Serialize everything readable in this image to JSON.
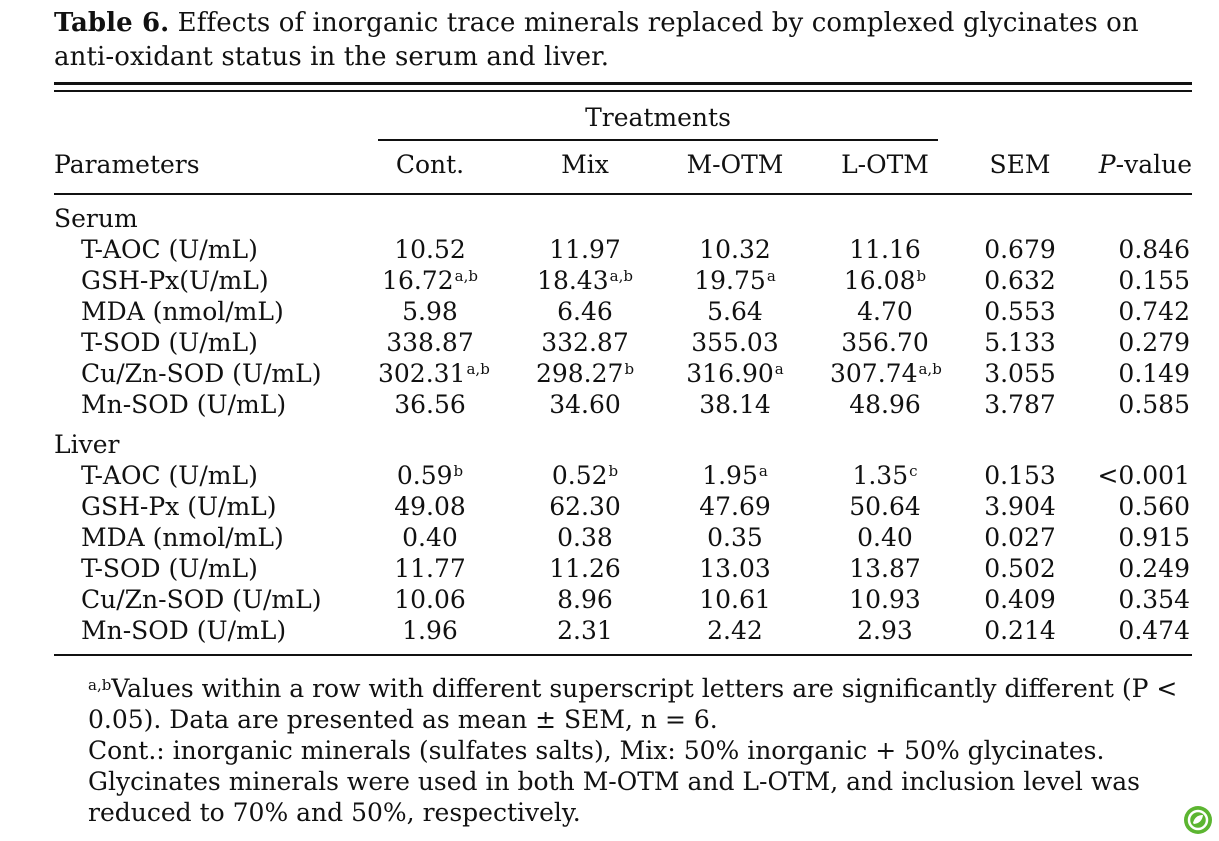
{
  "caption": {
    "label": "Table 6.",
    "text": " Effects of inorganic trace minerals replaced by complexed glycinates on anti-oxidant status in the serum and liver."
  },
  "header": {
    "treatments": "Treatments",
    "parameters": "Parameters",
    "columns": [
      "Cont.",
      "Mix",
      "M-OTM",
      "L-OTM"
    ],
    "sem": "SEM",
    "pvalue_italic": "P",
    "pvalue_rest": "-value"
  },
  "sections": [
    {
      "name": "Serum",
      "rows": [
        {
          "param": "T-AOC (U/mL)",
          "cells": [
            [
              "10.52",
              ""
            ],
            [
              "11.97",
              ""
            ],
            [
              "10.32",
              ""
            ],
            [
              "11.16",
              ""
            ]
          ],
          "sem": "0.679",
          "p": "0.846"
        },
        {
          "param": "GSH-Px(U/mL)",
          "cells": [
            [
              "16.72",
              "a,b"
            ],
            [
              "18.43",
              "a,b"
            ],
            [
              "19.75",
              "a"
            ],
            [
              "16.08",
              "b"
            ]
          ],
          "sem": "0.632",
          "p": "0.155"
        },
        {
          "param": "MDA (nmol/mL)",
          "cells": [
            [
              "5.98",
              ""
            ],
            [
              "6.46",
              ""
            ],
            [
              "5.64",
              ""
            ],
            [
              "4.70",
              ""
            ]
          ],
          "sem": "0.553",
          "p": "0.742"
        },
        {
          "param": "T-SOD (U/mL)",
          "cells": [
            [
              "338.87",
              ""
            ],
            [
              "332.87",
              ""
            ],
            [
              "355.03",
              ""
            ],
            [
              "356.70",
              ""
            ]
          ],
          "sem": "5.133",
          "p": "0.279"
        },
        {
          "param": "Cu/Zn-SOD (U/mL)",
          "cells": [
            [
              "302.31",
              "a,b"
            ],
            [
              "298.27",
              "b"
            ],
            [
              "316.90",
              "a"
            ],
            [
              "307.74",
              "a,b"
            ]
          ],
          "sem": "3.055",
          "p": "0.149"
        },
        {
          "param": "Mn-SOD (U/mL)",
          "cells": [
            [
              "36.56",
              ""
            ],
            [
              "34.60",
              ""
            ],
            [
              "38.14",
              ""
            ],
            [
              "48.96",
              ""
            ]
          ],
          "sem": "3.787",
          "p": "0.585"
        }
      ]
    },
    {
      "name": "Liver",
      "rows": [
        {
          "param": "T-AOC (U/mL)",
          "cells": [
            [
              "0.59",
              "b"
            ],
            [
              "0.52",
              "b"
            ],
            [
              "1.95",
              "a"
            ],
            [
              "1.35",
              "c"
            ]
          ],
          "sem": "0.153",
          "p": "<0.001"
        },
        {
          "param": "GSH-Px (U/mL)",
          "cells": [
            [
              "49.08",
              ""
            ],
            [
              "62.30",
              ""
            ],
            [
              "47.69",
              ""
            ],
            [
              "50.64",
              ""
            ]
          ],
          "sem": "3.904",
          "p": "0.560"
        },
        {
          "param": "MDA (nmol/mL)",
          "cells": [
            [
              "0.40",
              ""
            ],
            [
              "0.38",
              ""
            ],
            [
              "0.35",
              ""
            ],
            [
              "0.40",
              ""
            ]
          ],
          "sem": "0.027",
          "p": "0.915"
        },
        {
          "param": "T-SOD (U/mL)",
          "cells": [
            [
              "11.77",
              ""
            ],
            [
              "11.26",
              ""
            ],
            [
              "13.03",
              ""
            ],
            [
              "13.87",
              ""
            ]
          ],
          "sem": "0.502",
          "p": "0.249"
        },
        {
          "param": "Cu/Zn-SOD (U/mL)",
          "cells": [
            [
              "10.06",
              ""
            ],
            [
              "8.96",
              ""
            ],
            [
              "10.61",
              ""
            ],
            [
              "10.93",
              ""
            ]
          ],
          "sem": "0.409",
          "p": "0.354"
        },
        {
          "param": "Mn-SOD (U/mL)",
          "cells": [
            [
              "1.96",
              ""
            ],
            [
              "2.31",
              ""
            ],
            [
              "2.42",
              ""
            ],
            [
              "2.93",
              ""
            ]
          ],
          "sem": "0.214",
          "p": "0.474"
        }
      ]
    }
  ],
  "footnotes": {
    "note1_sup": "a,b",
    "note1_text": "Values within a row with different superscript letters are significantly different (P < 0.05). Data are presented as mean ± SEM, n = 6.",
    "note2_text": "Cont.: inorganic minerals (sulfates salts), Mix: 50% inorganic + 50% glycinates. Glycinates minerals were used in both M-OTM and L-OTM, and inclusion level was reduced to 70% and 50%, respectively."
  },
  "badge_color": "#5cb531"
}
